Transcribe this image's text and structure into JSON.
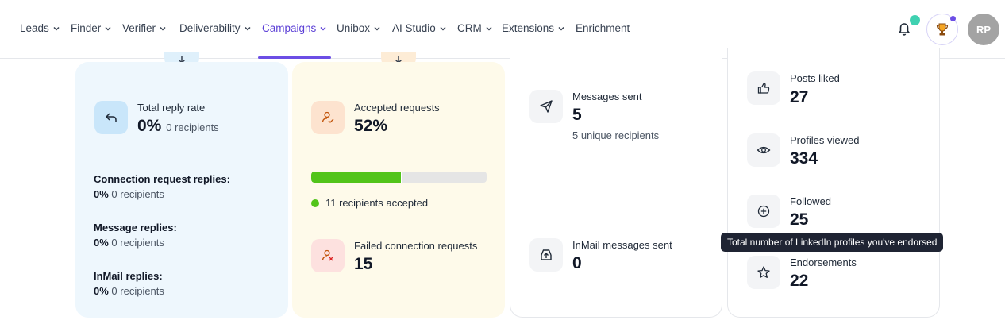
{
  "nav": {
    "items": [
      {
        "label": "Leads"
      },
      {
        "label": "Finder"
      },
      {
        "label": "Verifier"
      },
      {
        "label": "Deliverability"
      },
      {
        "label": "Campaigns",
        "active": true
      },
      {
        "label": "Unibox"
      },
      {
        "label": "AI Studio"
      },
      {
        "label": "CRM"
      },
      {
        "label": "Extensions"
      },
      {
        "label": "Enrichment"
      }
    ],
    "avatar_initials": "RP",
    "icons": [
      "bell-icon",
      "trophy-icon"
    ]
  },
  "replies": {
    "title": "Total reply rate",
    "value": "0%",
    "value_sub": "0 recipients",
    "rows": [
      {
        "label": "Connection request replies:",
        "pct": "0%",
        "count": "0 recipients"
      },
      {
        "label": "Message replies:",
        "pct": "0%",
        "count": "0 recipients"
      },
      {
        "label": "InMail replies:",
        "pct": "0%",
        "count": "0 recipients"
      }
    ]
  },
  "requests": {
    "accepted_title": "Accepted requests",
    "accepted_value": "52%",
    "progress_fraction": 0.52,
    "accepted_note": "11 recipients accepted",
    "failed_title": "Failed connection requests",
    "failed_value": "15"
  },
  "messages": {
    "sent_title": "Messages sent",
    "sent_value": "5",
    "sent_sub": "5 unique recipients",
    "inmail_title": "InMail messages sent",
    "inmail_value": "0"
  },
  "activity": {
    "items": [
      {
        "label": "Posts liked",
        "value": "27",
        "icon": "thumbs-up-icon"
      },
      {
        "label": "Profiles viewed",
        "value": "334",
        "icon": "eye-icon"
      },
      {
        "label": "Followed",
        "value": "25",
        "icon": "plus-circle-icon"
      },
      {
        "label": "Endorsements",
        "value": "22",
        "icon": "star-icon"
      }
    ],
    "tooltip": "Total number of LinkedIn profiles you've endorsed"
  },
  "colors": {
    "accent": "#6c4ee5",
    "progress": "#52c41a"
  }
}
